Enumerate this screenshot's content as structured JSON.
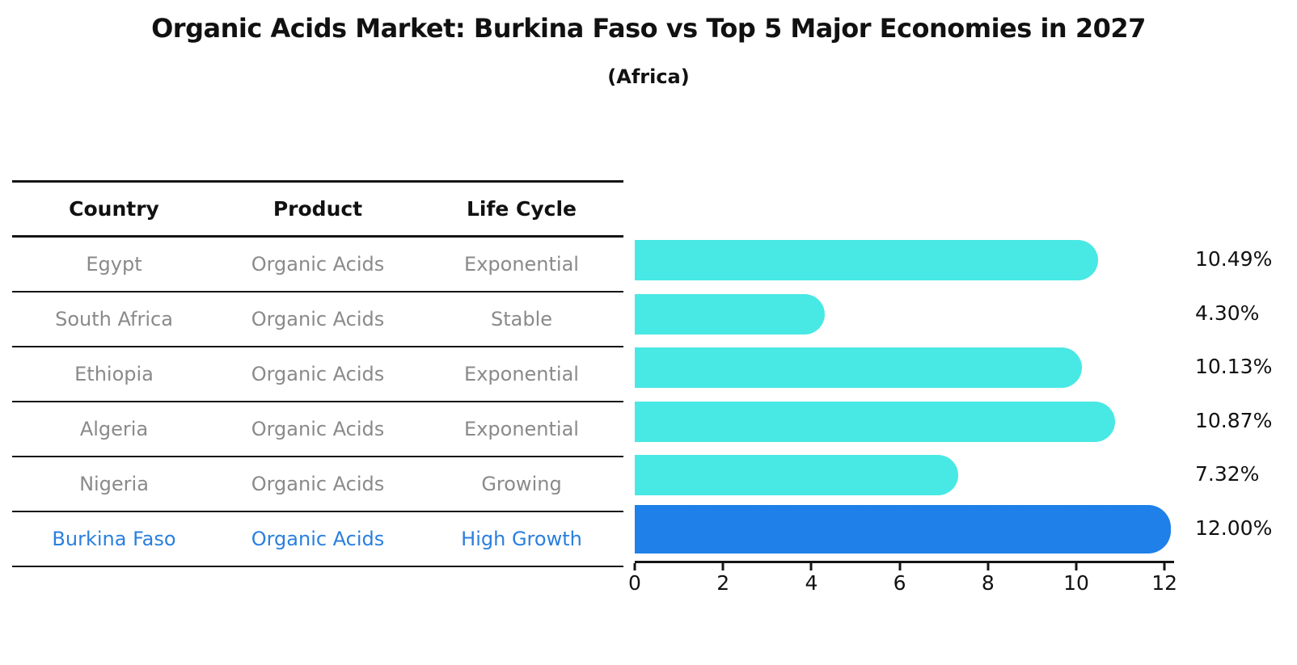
{
  "title": "Organic Acids Market: Burkina Faso vs Top 5 Major Economies in 2027",
  "subtitle": "(Africa)",
  "table": {
    "headers": [
      "Country",
      "Product",
      "Life Cycle"
    ],
    "rows": [
      {
        "country": "Egypt",
        "product": "Organic Acids",
        "life_cycle": "Exponential",
        "highlight": false
      },
      {
        "country": "South Africa",
        "product": "Organic Acids",
        "life_cycle": "Stable",
        "highlight": false
      },
      {
        "country": "Ethiopia",
        "product": "Organic Acids",
        "life_cycle": "Exponential",
        "highlight": false
      },
      {
        "country": "Algeria",
        "product": "Organic Acids",
        "life_cycle": "Exponential",
        "highlight": false
      },
      {
        "country": "Nigeria",
        "product": "Organic Acids",
        "life_cycle": "Growing",
        "highlight": false
      },
      {
        "country": "Burkina Faso",
        "product": "Organic Acids",
        "life_cycle": "High Growth",
        "highlight": true
      }
    ]
  },
  "chart_data": {
    "type": "bar",
    "orientation": "horizontal",
    "title": "Organic Acids Market: Burkina Faso vs Top 5 Major Economies in 2027",
    "subtitle": "(Africa)",
    "categories": [
      "Egypt",
      "South Africa",
      "Ethiopia",
      "Algeria",
      "Nigeria",
      "Burkina Faso"
    ],
    "values": [
      10.49,
      4.3,
      10.13,
      10.87,
      7.32,
      12.0
    ],
    "value_labels": [
      "10.49%",
      "4.30%",
      "10.13%",
      "10.87%",
      "7.32%",
      "12.00%"
    ],
    "xlabel": "",
    "ylabel": "",
    "xlim": [
      0,
      12.2
    ],
    "xticks": [
      0,
      2,
      4,
      6,
      8,
      10,
      12
    ],
    "grid": false,
    "legend": false,
    "bar_color": "#48e8e4",
    "highlight_color": "#1e80e8",
    "highlight_index": 5,
    "highlight_border_style": "dotted"
  },
  "colors": {
    "title_text": "#111111",
    "table_header_text": "#111111",
    "table_row_text": "#8a8a8a",
    "highlight_row_text": "#2a7fde",
    "axis": "#151515",
    "value_label_text": "#111111"
  }
}
